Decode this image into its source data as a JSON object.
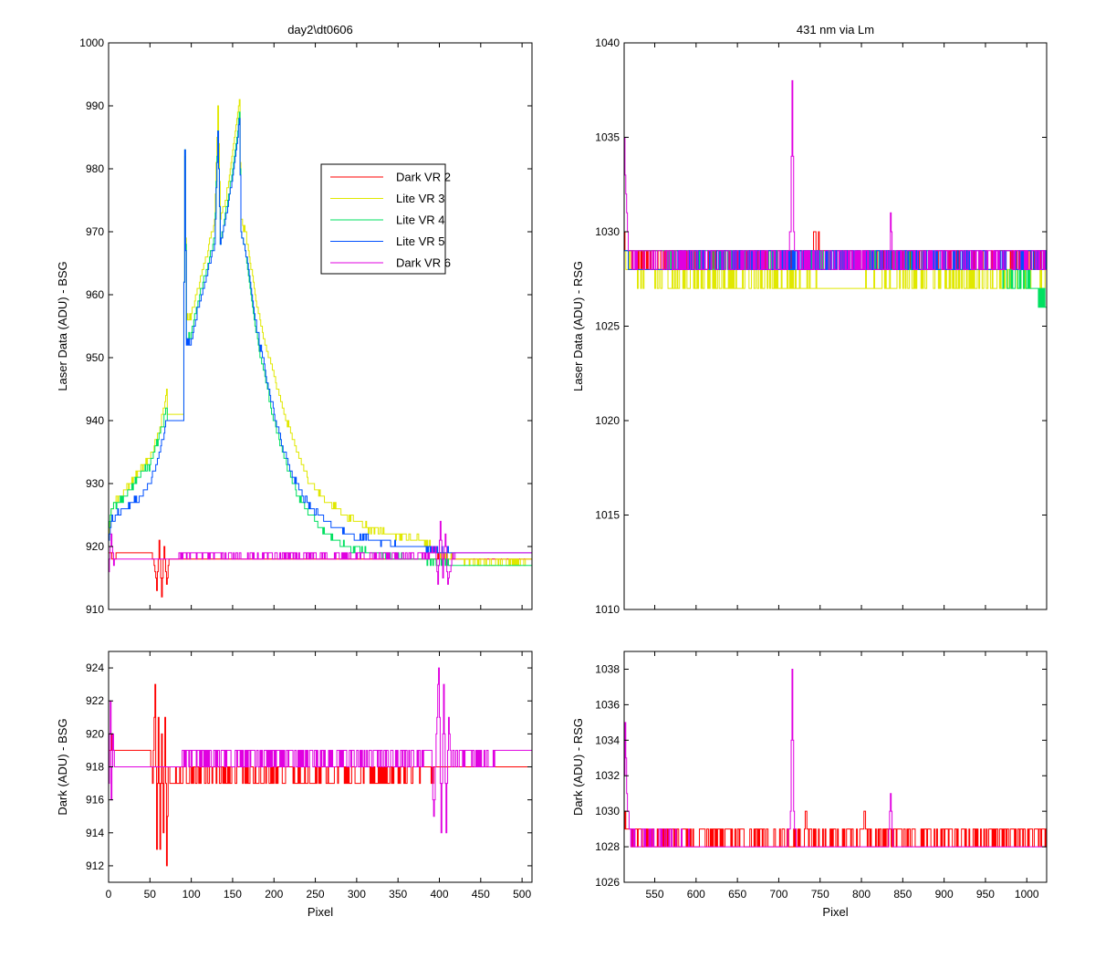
{
  "chart_data": [
    {
      "type": "line",
      "title": "day2\\dt0606",
      "xlabel": "",
      "ylabel": "Laser Data (ADU) - BSG",
      "xlim": [
        0,
        512
      ],
      "ylim": [
        910,
        1000
      ],
      "xticks": [
        0,
        50,
        100,
        150,
        200,
        250,
        300,
        350,
        400,
        450,
        500
      ],
      "yticks": [
        910,
        920,
        930,
        940,
        950,
        960,
        970,
        980,
        990,
        1000
      ],
      "show_xtick_labels": false,
      "legend_position": "upper-middle",
      "series": [
        {
          "name": "Dark VR 2",
          "color": "#ff0000",
          "x": [
            0,
            5,
            10,
            20,
            40,
            52,
            55,
            58,
            61,
            64,
            67,
            70,
            73,
            80,
            100,
            150,
            200,
            250,
            300,
            350,
            380,
            395,
            400,
            410,
            450,
            500,
            512
          ],
          "y": [
            919,
            918.5,
            919,
            919,
            919,
            919,
            917,
            913,
            921,
            912,
            920,
            914,
            918,
            918,
            918,
            918,
            918,
            918,
            918,
            918,
            918,
            918,
            918.5,
            918,
            918,
            918,
            918
          ]
        },
        {
          "name": "Lite VR 3",
          "color": "#e0e800",
          "x": [
            0,
            3,
            10,
            20,
            30,
            40,
            50,
            55,
            60,
            65,
            70,
            71,
            75,
            80,
            85,
            90,
            92,
            94,
            100,
            110,
            120,
            128,
            132,
            135,
            140,
            145,
            150,
            155,
            158,
            160,
            165,
            170,
            175,
            180,
            190,
            200,
            210,
            220,
            230,
            240,
            250,
            260,
            270,
            280,
            300,
            320,
            340,
            360,
            380,
            390,
            400,
            420,
            450,
            480,
            512
          ],
          "y": [
            921,
            926,
            927.5,
            929,
            931,
            932.5,
            934,
            936,
            938,
            941,
            945,
            941,
            941,
            941,
            941,
            941,
            982,
            956,
            957,
            962,
            967,
            972,
            990,
            972,
            974,
            978,
            983,
            988,
            991,
            972,
            970,
            966,
            962,
            958,
            952,
            947,
            942,
            938,
            934,
            931,
            929,
            927.5,
            926.5,
            925.5,
            924,
            922.5,
            922,
            921.5,
            921,
            920,
            919,
            918,
            917.5,
            917.5,
            918
          ]
        },
        {
          "name": "Lite VR 4",
          "color": "#00e060",
          "x": [
            0,
            3,
            10,
            20,
            30,
            40,
            50,
            55,
            60,
            65,
            70,
            71,
            75,
            80,
            85,
            90,
            92,
            94,
            100,
            110,
            120,
            128,
            132,
            135,
            140,
            145,
            150,
            155,
            158,
            160,
            165,
            170,
            175,
            180,
            190,
            200,
            210,
            220,
            230,
            240,
            250,
            260,
            270,
            280,
            300,
            320,
            340,
            360,
            380,
            390,
            400,
            420,
            450,
            480,
            512
          ],
          "y": [
            923,
            926,
            927,
            928,
            930,
            931.5,
            933,
            935,
            937,
            939,
            942,
            940,
            940,
            940,
            940,
            940,
            983,
            953,
            954,
            960,
            965,
            969,
            986,
            968,
            972,
            976,
            980,
            985,
            989,
            970,
            967,
            962,
            957,
            953,
            946,
            940,
            935,
            931,
            928,
            926,
            924,
            922.5,
            921.5,
            920.5,
            919.5,
            919,
            918.5,
            918,
            918,
            917.5,
            917.5,
            917,
            917,
            917,
            917
          ]
        },
        {
          "name": "Lite VR 5",
          "color": "#0050ff",
          "x": [
            0,
            3,
            10,
            20,
            30,
            40,
            50,
            55,
            60,
            65,
            70,
            71,
            75,
            80,
            85,
            90,
            92,
            94,
            100,
            110,
            120,
            128,
            132,
            135,
            140,
            145,
            150,
            155,
            158,
            160,
            165,
            170,
            175,
            180,
            190,
            200,
            210,
            220,
            230,
            240,
            250,
            260,
            270,
            280,
            300,
            320,
            340,
            360,
            380,
            390,
            400,
            420,
            450,
            480,
            512
          ],
          "y": [
            921,
            924,
            925,
            926,
            927,
            928.5,
            930,
            932,
            934,
            937,
            940,
            940,
            940,
            940,
            940,
            940,
            983,
            952,
            953,
            959,
            964,
            968,
            986,
            968,
            971,
            975,
            979,
            984,
            988,
            970,
            967,
            963,
            958,
            954,
            947,
            941,
            936,
            932,
            929,
            927,
            925.5,
            924.5,
            923.5,
            922.5,
            921.5,
            921,
            920.5,
            920,
            920,
            919.5,
            919.5,
            919,
            919,
            919,
            919
          ]
        },
        {
          "name": "Dark VR 6",
          "color": "#e000e0",
          "x": [
            0,
            3,
            6,
            10,
            20,
            40,
            60,
            80,
            100,
            150,
            200,
            250,
            300,
            350,
            380,
            390,
            395,
            398,
            401,
            404,
            407,
            410,
            415,
            420,
            450,
            480,
            500,
            512
          ],
          "y": [
            916,
            922,
            917,
            918,
            918,
            918,
            918,
            918,
            919,
            918.5,
            918.5,
            918.5,
            918.5,
            918.5,
            918.5,
            919,
            920,
            914,
            924,
            915,
            922,
            914,
            918,
            919,
            919,
            919,
            919,
            919
          ]
        }
      ]
    },
    {
      "type": "line",
      "title": "431 nm via Lm",
      "xlabel": "",
      "ylabel": "Laser Data (ADU) - RSG",
      "xlim": [
        513,
        1024
      ],
      "ylim": [
        1010,
        1040
      ],
      "xticks": [
        550,
        600,
        650,
        700,
        750,
        800,
        850,
        900,
        950,
        1000
      ],
      "yticks": [
        1010,
        1015,
        1020,
        1025,
        1030,
        1035,
        1040
      ],
      "show_xtick_labels": false,
      "series": [
        {
          "name": "Dark VR 2",
          "color": "#ff0000",
          "x": [
            513,
            515,
            520,
            600,
            700,
            730,
            740,
            800,
            850,
            900,
            950,
            1000,
            1024
          ],
          "y": [
            1030,
            1029,
            1028.5,
            1028.5,
            1028.5,
            1028.5,
            1029.5,
            1028.5,
            1028.5,
            1028.5,
            1028.5,
            1028.5,
            1028.5
          ]
        },
        {
          "name": "Lite VR 3",
          "color": "#e0e800",
          "x": [
            513,
            520,
            560,
            600,
            650,
            700,
            750,
            800,
            850,
            900,
            950,
            1000,
            1024
          ],
          "y": [
            1029,
            1028,
            1027.5,
            1027.5,
            1027.5,
            1027.5,
            1027,
            1027,
            1027.5,
            1027.5,
            1027.5,
            1027.5,
            1027.5
          ]
        },
        {
          "name": "Lite VR 4",
          "color": "#00e060",
          "x": [
            513,
            520,
            560,
            600,
            650,
            700,
            750,
            800,
            850,
            900,
            950,
            1000,
            1024
          ],
          "y": [
            1029,
            1029,
            1029,
            1028.5,
            1028.5,
            1028.5,
            1028.5,
            1028.5,
            1028.5,
            1028,
            1028,
            1027.5,
            1026.5
          ]
        },
        {
          "name": "Lite VR 5",
          "color": "#0050ff",
          "x": [
            513,
            520,
            560,
            600,
            650,
            700,
            750,
            800,
            850,
            900,
            950,
            1000,
            1024
          ],
          "y": [
            1029,
            1028,
            1028,
            1028.5,
            1028.5,
            1028.5,
            1028.5,
            1028.5,
            1028.5,
            1028.5,
            1028.5,
            1028.5,
            1028.5
          ]
        },
        {
          "name": "Dark VR 6",
          "color": "#e000e0",
          "x": [
            513,
            515,
            518,
            525,
            600,
            710,
            714,
            716,
            718,
            720,
            800,
            833,
            835,
            837,
            900,
            1000,
            1024
          ],
          "y": [
            1035,
            1032,
            1029,
            1028.5,
            1028.5,
            1028.5,
            1030,
            1038,
            1030,
            1028.5,
            1028.5,
            1028.5,
            1031,
            1028.5,
            1028.5,
            1028.5,
            1028.5
          ]
        }
      ]
    },
    {
      "type": "line",
      "title": "",
      "xlabel": "Pixel",
      "ylabel": "Dark (ADU) - BSG",
      "xlim": [
        0,
        512
      ],
      "ylim": [
        911,
        925
      ],
      "xticks": [
        0,
        50,
        100,
        150,
        200,
        250,
        300,
        350,
        400,
        450,
        500
      ],
      "yticks": [
        912,
        914,
        916,
        918,
        920,
        922,
        924
      ],
      "show_xtick_labels": true,
      "series": [
        {
          "name": "Dark VR 2",
          "color": "#ff0000",
          "x": [
            0,
            2,
            4,
            8,
            12,
            20,
            40,
            50,
            53,
            56,
            58,
            60,
            62,
            64,
            66,
            68,
            70,
            72,
            75,
            80,
            100,
            150,
            200,
            250,
            300,
            350,
            400,
            450,
            512
          ],
          "y": [
            918,
            919.5,
            919,
            919,
            919,
            919,
            919,
            919,
            917,
            923,
            913,
            921,
            913,
            920,
            914,
            921,
            912,
            918,
            917.5,
            917.5,
            917.5,
            917.5,
            917.5,
            917.5,
            917.5,
            917.5,
            918,
            918,
            918
          ]
        },
        {
          "name": "Dark VR 6",
          "color": "#e000e0",
          "x": [
            0,
            2,
            3,
            5,
            8,
            12,
            40,
            60,
            80,
            90,
            150,
            200,
            250,
            300,
            350,
            385,
            390,
            393,
            396,
            399,
            402,
            405,
            408,
            411,
            414,
            420,
            450,
            480,
            500,
            512
          ],
          "y": [
            917,
            922,
            916,
            920,
            918,
            918,
            918,
            918,
            918,
            918.5,
            918.5,
            918.5,
            918.5,
            918.5,
            918.5,
            918.5,
            919,
            915,
            920,
            924,
            914,
            923,
            914,
            921,
            918,
            918.5,
            918.5,
            919,
            919,
            919
          ]
        }
      ]
    },
    {
      "type": "line",
      "title": "",
      "xlabel": "Pixel",
      "ylabel": "Dark (ADU) - RSG",
      "xlim": [
        513,
        1024
      ],
      "ylim": [
        1026,
        1039
      ],
      "xticks": [
        550,
        600,
        650,
        700,
        750,
        800,
        850,
        900,
        950,
        1000
      ],
      "yticks": [
        1026,
        1028,
        1030,
        1032,
        1034,
        1036,
        1038
      ],
      "show_xtick_labels": true,
      "series": [
        {
          "name": "Dark VR 2",
          "color": "#ff0000",
          "x": [
            513,
            515,
            520,
            600,
            700,
            730,
            733,
            736,
            800,
            803,
            806,
            850,
            900,
            950,
            1000,
            1024
          ],
          "y": [
            1029.5,
            1029,
            1028.5,
            1028.5,
            1028.5,
            1028.5,
            1030,
            1028.5,
            1028.5,
            1030,
            1028.5,
            1028.5,
            1028.5,
            1028.5,
            1028.5,
            1028.5
          ]
        },
        {
          "name": "Dark VR 6",
          "color": "#e000e0",
          "x": [
            513,
            514,
            516,
            519,
            523,
            600,
            710,
            714,
            716,
            718,
            722,
            800,
            832,
            835,
            838,
            900,
            1000,
            1024
          ],
          "y": [
            1032,
            1035,
            1031,
            1029,
            1028.5,
            1028,
            1028,
            1030,
            1038,
            1030,
            1028,
            1028,
            1028,
            1031,
            1028,
            1028,
            1028,
            1028
          ]
        }
      ]
    }
  ]
}
